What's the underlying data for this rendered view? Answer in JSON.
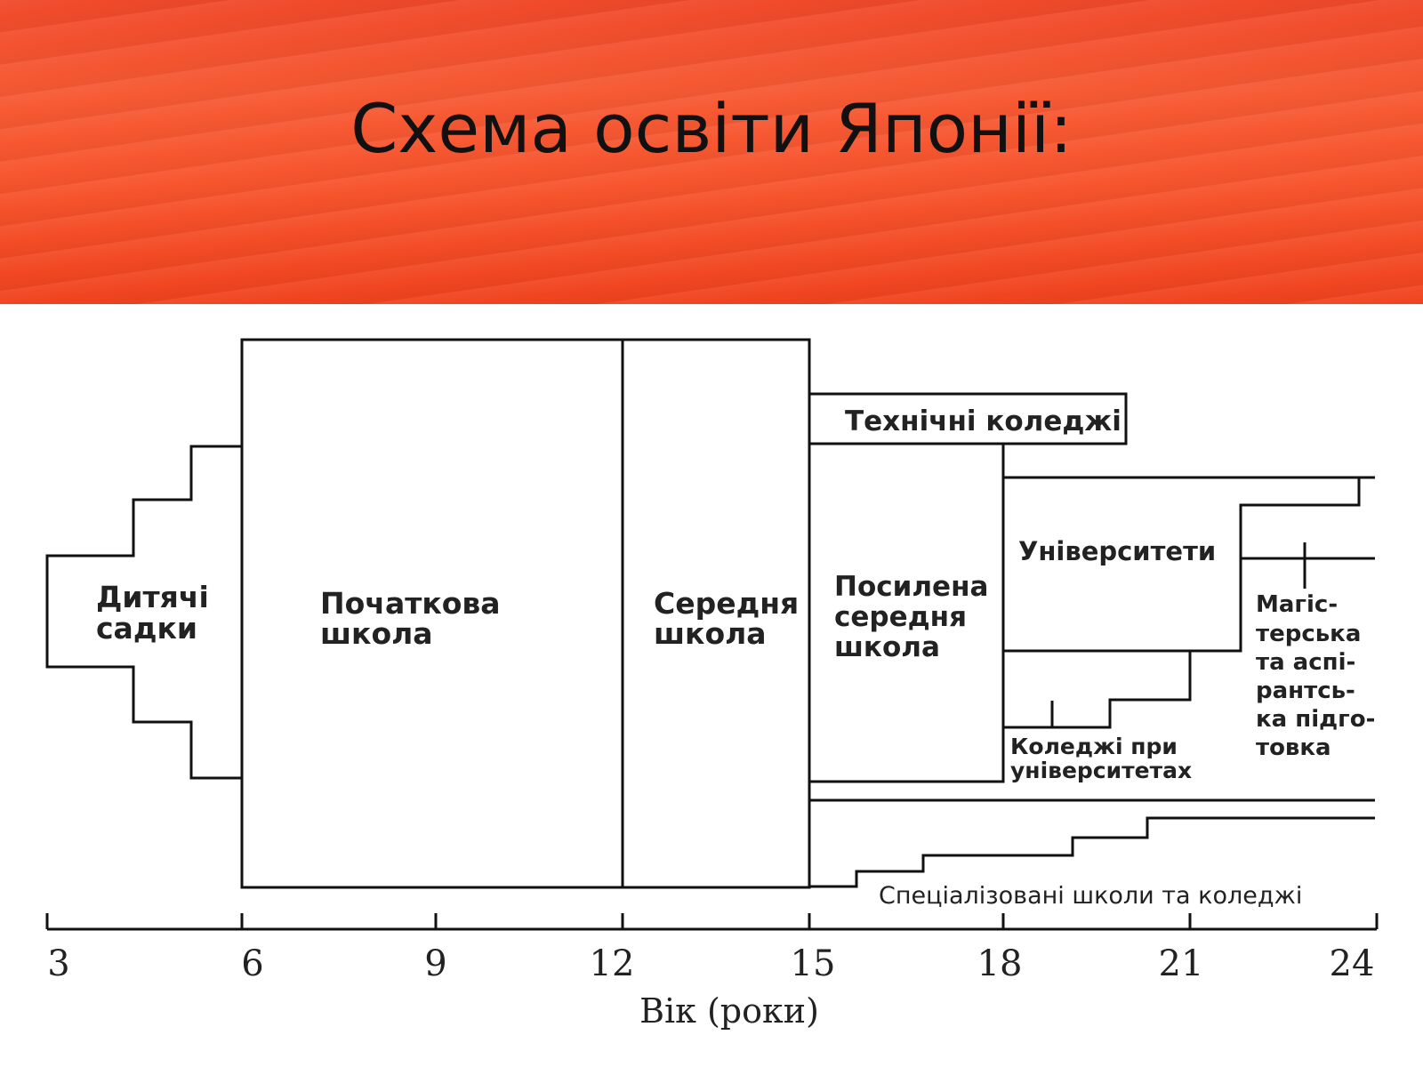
{
  "slide": {
    "title": "Схема освіти Японії:",
    "header_color": "#f4512c"
  },
  "diagram": {
    "blocks": {
      "kindergarten": [
        "Дитячі",
        "садки"
      ],
      "primary": [
        "Початкова",
        "школа"
      ],
      "middle": [
        "Середня",
        "школа"
      ],
      "upper_secondary": [
        "Посилена",
        "середня",
        "школа"
      ],
      "technical_colleges": "Технічні коледжі",
      "universities": "Університети",
      "junior_colleges": [
        "Коледжі  при",
        "університетах"
      ],
      "graduate": [
        "Магіс-",
        "терська",
        "та аспі-",
        "рантсь-",
        "ка підго-",
        "товка"
      ],
      "special_training": "Спеціалізовані школи та коледжі"
    },
    "axis": {
      "ticks": [
        "3",
        "6",
        "9",
        "12",
        "15",
        "18",
        "21",
        "24"
      ],
      "label": "Вік (роки)"
    }
  }
}
